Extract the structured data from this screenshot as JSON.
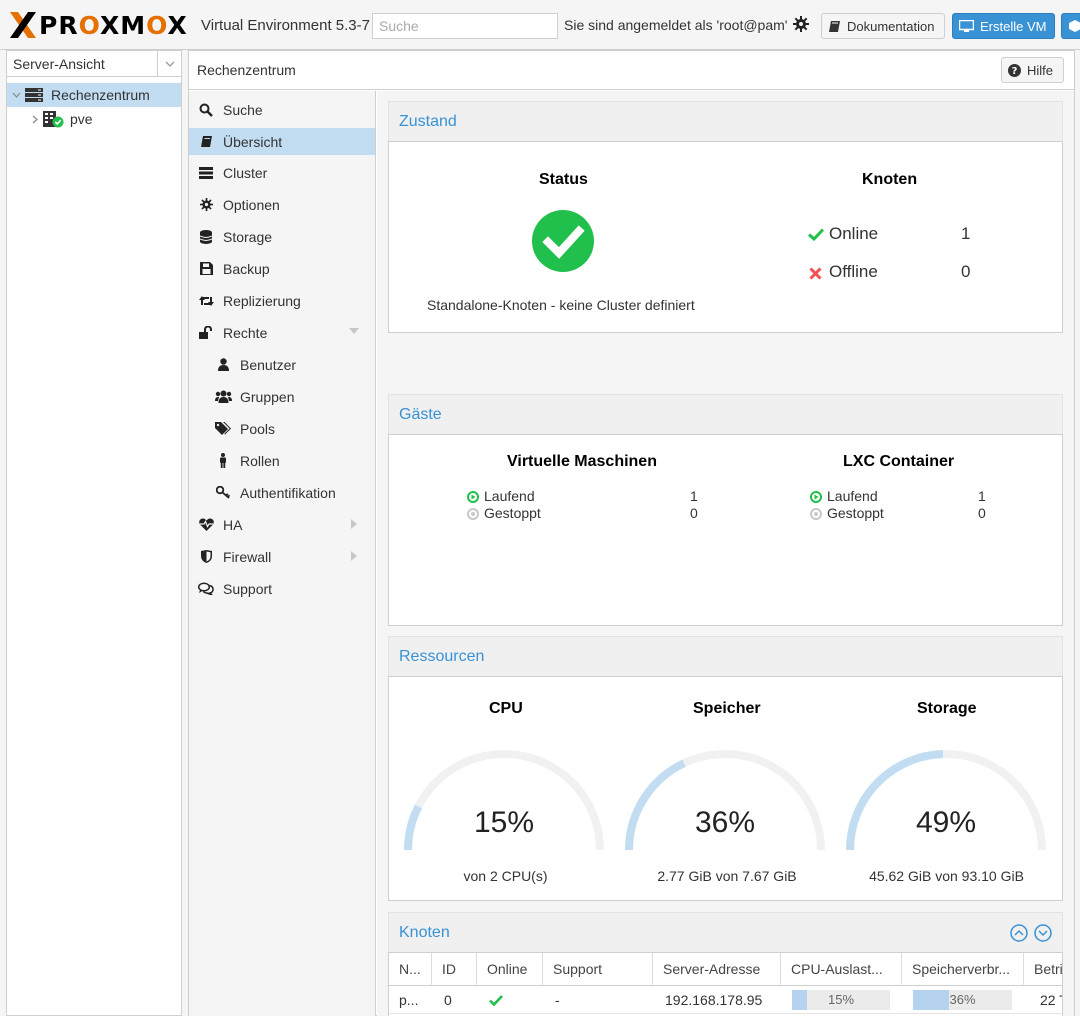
{
  "app": {
    "brand": "PROXMOX",
    "version": "Virtual Environment 5.3-7",
    "search_placeholder": "Suche",
    "login_text": "Sie sind angemeldet als 'root@pam'",
    "docs_label": "Dokumentation",
    "create_vm_label": "Erstelle VM"
  },
  "tree": {
    "view": "Server-Ansicht",
    "items": [
      {
        "label": "Rechenzentrum"
      },
      {
        "label": "pve"
      }
    ]
  },
  "header": {
    "title": "Rechenzentrum",
    "help_label": "Hilfe"
  },
  "menu": [
    {
      "label": "Suche",
      "icon": "search-icon"
    },
    {
      "label": "Übersicht",
      "icon": "book-icon"
    },
    {
      "label": "Cluster",
      "icon": "server-icon"
    },
    {
      "label": "Optionen",
      "icon": "gear-icon"
    },
    {
      "label": "Storage",
      "icon": "database-icon"
    },
    {
      "label": "Backup",
      "icon": "floppy-icon"
    },
    {
      "label": "Replizierung",
      "icon": "retweet-icon"
    },
    {
      "label": "Rechte",
      "icon": "unlock-icon"
    },
    {
      "label": "Benutzer",
      "icon": "user-icon"
    },
    {
      "label": "Gruppen",
      "icon": "users-icon"
    },
    {
      "label": "Pools",
      "icon": "tags-icon"
    },
    {
      "label": "Rollen",
      "icon": "male-icon"
    },
    {
      "label": "Authentifikation",
      "icon": "key-icon"
    },
    {
      "label": "HA",
      "icon": "heartbeat-icon"
    },
    {
      "label": "Firewall",
      "icon": "shield-icon"
    },
    {
      "label": "Support",
      "icon": "comments-icon"
    }
  ],
  "zustand": {
    "title": "Zustand",
    "status_heading": "Status",
    "status_text": "Standalone-Knoten - keine Cluster definiert",
    "nodes_heading": "Knoten",
    "online_label": "Online",
    "online_count": "1",
    "offline_label": "Offline",
    "offline_count": "0"
  },
  "gaeste": {
    "title": "Gäste",
    "vm_heading": "Virtuelle Maschinen",
    "ct_heading": "LXC Container",
    "running_label": "Laufend",
    "stopped_label": "Gestoppt",
    "vm_running": "1",
    "vm_stopped": "0",
    "ct_running": "1",
    "ct_stopped": "0"
  },
  "ressourcen": {
    "title": "Ressourcen",
    "gauges": [
      {
        "label": "CPU",
        "value": 0.15,
        "pct_text": "15%",
        "detail": "von 2 CPU(s)"
      },
      {
        "label": "Speicher",
        "value": 0.36,
        "pct_text": "36%",
        "detail": "2.77 GiB von 7.67 GiB"
      },
      {
        "label": "Storage",
        "value": 0.49,
        "pct_text": "49%",
        "detail": "45.62 GiB von 93.10 GiB"
      }
    ]
  },
  "knoten": {
    "title": "Knoten",
    "columns": [
      "N...",
      "ID",
      "Online",
      "Support",
      "Server-Adresse",
      "CPU-Auslast...",
      "Speicherverbr...",
      "Betri"
    ],
    "rows": [
      {
        "name": "p...",
        "id": "0",
        "support": "-",
        "address": "192.168.178.95",
        "cpu": 0.15,
        "cpu_text": "15%",
        "mem": 0.36,
        "mem_text": "36%",
        "uptime": "22 T"
      }
    ]
  },
  "colors": {
    "accent": "#3892d4",
    "ok": "#21bf4b",
    "error": "#f54f4f",
    "selected": "#c2ddf2",
    "brand_orange": "#e57000"
  }
}
